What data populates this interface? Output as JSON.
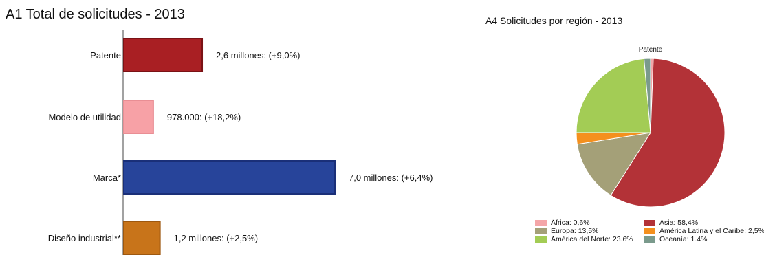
{
  "chart_data": [
    {
      "type": "bar",
      "orientation": "horizontal",
      "title": "A1 Total de solicitudes - 2013",
      "categories": [
        "Patente",
        "Modelo de utilidad",
        "Marca*",
        "Diseño industrial**"
      ],
      "values": [
        2600000,
        978000,
        7000000,
        1200000
      ],
      "data_labels": [
        "2,6 millones: (+9,0%)",
        "978.000: (+18,2%)",
        "7,0 millones: (+6,4%)",
        "1,2 millones: (+2,5%)"
      ],
      "colors": [
        "#a91f23",
        "#f7a1a6",
        "#27449a",
        "#c8741a"
      ],
      "border_colors": [
        "#7a1215",
        "#e98e94",
        "#1a2f78",
        "#9d5810"
      ],
      "xlim": [
        0,
        7000000
      ],
      "grid": false,
      "legend": "none"
    },
    {
      "type": "pie",
      "title": "A4 Solicitudes por región - 2013",
      "subtitle": "Patente",
      "categories": [
        "África",
        "Asia",
        "Europa",
        "América Latina y el Caribe",
        "América del Norte",
        "Oceanía"
      ],
      "values": [
        0.6,
        58.4,
        13.5,
        2.5,
        23.6,
        1.4
      ],
      "legend_labels": [
        "África: 0,6%",
        "Asia: 58,4%",
        "Europa: 13,5%",
        "América Latina y el Caribe: 2,5%",
        "América del Norte: 23.6%",
        "Oceanía: 1.4%"
      ],
      "colors": [
        "#f4a6a8",
        "#b33237",
        "#a4a078",
        "#f4901e",
        "#a3cc55",
        "#7a9a8c"
      ],
      "legend_position": "bottom"
    }
  ]
}
